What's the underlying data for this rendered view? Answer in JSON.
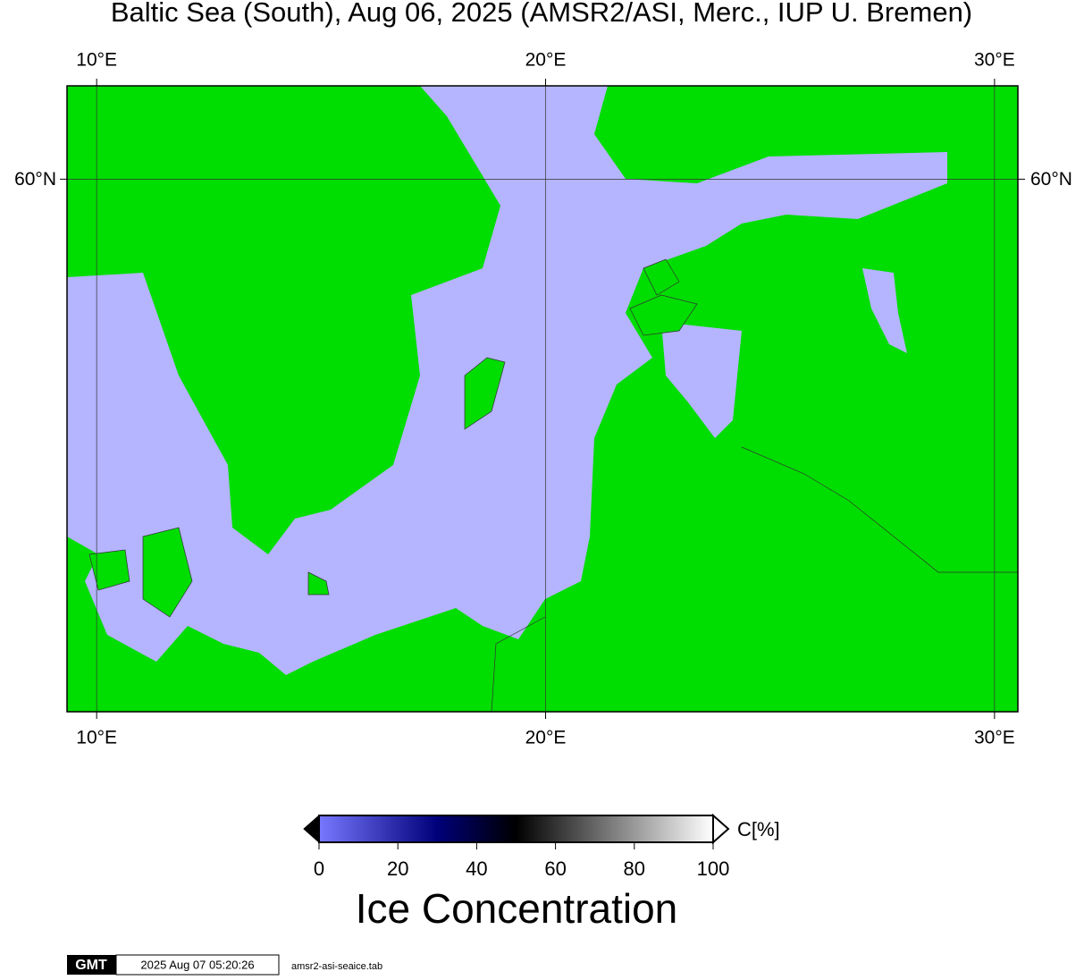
{
  "title": "Baltic Sea (South), Aug 06, 2025 (AMSR2/ASI, Merc., IUP U. Bremen)",
  "map": {
    "xlim": [
      9.34,
      30.52
    ],
    "ylim": [
      53.54,
      61.02
    ],
    "xticks": [
      {
        "value": 10,
        "label": "10°E"
      },
      {
        "value": 20,
        "label": "20°E"
      },
      {
        "value": 30,
        "label": "30°E"
      }
    ],
    "yticks": [
      {
        "value": 60,
        "label": "60°N"
      }
    ],
    "land_color": "#00dd00",
    "sea_color": "#b4b4ff"
  },
  "colorbar": {
    "lim": [
      0,
      100
    ],
    "ticks": [
      0,
      20,
      40,
      60,
      80,
      100
    ],
    "unit": "C[%]",
    "label": "Ice Concentration"
  },
  "footer": {
    "logo": "GMT",
    "timestamp": "2025 Aug 07 05:20:26",
    "file": "amsr2-asi-seaice.tab"
  }
}
